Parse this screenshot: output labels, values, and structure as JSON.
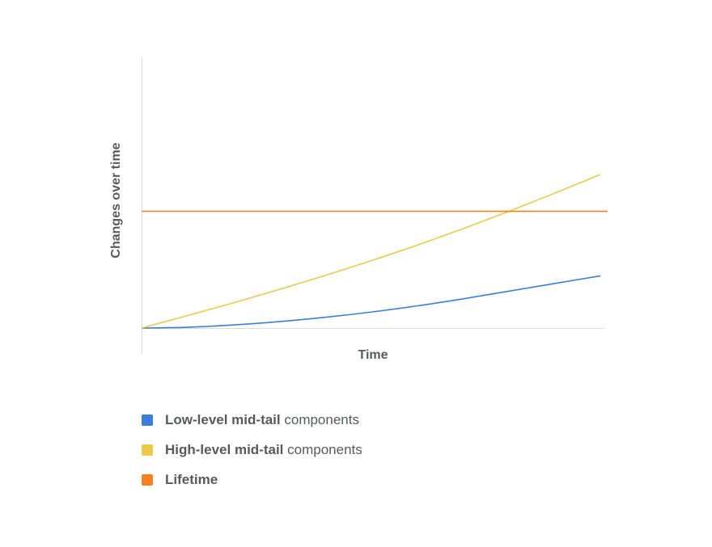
{
  "chart_data": {
    "type": "line",
    "title": "",
    "xlabel": "Time",
    "ylabel": "Changes over time",
    "xlim": [
      0,
      1
    ],
    "ylim": [
      0,
      1
    ],
    "grid": false,
    "legend_position": "bottom",
    "series": [
      {
        "name": "Low-level mid-tail components",
        "legend_bold": "Low-level mid-tail",
        "legend_rest": " components",
        "color": "#3b7ddd",
        "x": [
          0,
          0.1,
          0.2,
          0.3,
          0.4,
          0.5,
          0.6,
          0.7,
          0.8,
          0.9,
          1.0
        ],
        "y": [
          0,
          0.005,
          0.02,
          0.042,
          0.07,
          0.104,
          0.144,
          0.19,
          0.24,
          0.29,
          0.34
        ]
      },
      {
        "name": "High-level mid-tail components",
        "legend_bold": "High-level mid-tail",
        "legend_rest": " components",
        "color": "#ecc94b",
        "x": [
          0,
          0.1,
          0.2,
          0.3,
          0.4,
          0.5,
          0.6,
          0.7,
          0.8,
          0.9,
          1.0
        ],
        "y": [
          0,
          0.081,
          0.164,
          0.251,
          0.342,
          0.438,
          0.539,
          0.646,
          0.759,
          0.878,
          1.0
        ]
      },
      {
        "name": "Lifetime",
        "legend_bold": "Lifetime",
        "legend_rest": "",
        "color": "#f5821f",
        "x": [
          0,
          1.0
        ],
        "y": [
          0.76,
          0.76
        ]
      }
    ]
  }
}
